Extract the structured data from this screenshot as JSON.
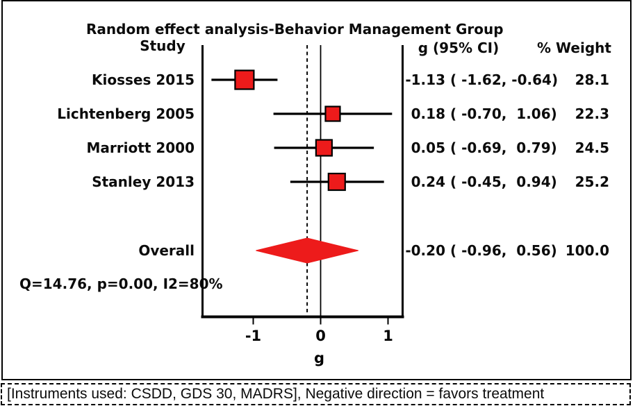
{
  "title": "Random effect analysis-Behavior Management Group",
  "columns": {
    "study": "Study",
    "effect": "g (95% CI)",
    "weight": "% Weight"
  },
  "footer": {
    "note": "[Instruments used: CSDD, GDS 30, MADRS], Negative direction = favors treatment"
  },
  "chart_data": {
    "type": "forest",
    "title": "Random effect analysis-Behavior Management Group",
    "xlabel": "g",
    "x_ticks": [
      -1,
      0,
      1
    ],
    "xlim": [
      -1.75,
      1.22
    ],
    "null_line_x": 0,
    "overall_dashed_line_x": -0.2,
    "marker_color": "#ED1B1B",
    "line_color": "#000000",
    "studies": [
      {
        "label": "Kiosses 2015",
        "g": -1.13,
        "ci_low": -1.62,
        "ci_high": -0.64,
        "weight": 28.1,
        "g_text": "-1.13",
        "ci_text": "( -1.62, -0.64)",
        "weight_text": "28.1"
      },
      {
        "label": "Lichtenberg 2005",
        "g": 0.18,
        "ci_low": -0.7,
        "ci_high": 1.06,
        "weight": 22.3,
        "g_text": "0.18",
        "ci_text": "( -0.70,  1.06)",
        "weight_text": "22.3"
      },
      {
        "label": "Marriott 2000",
        "g": 0.05,
        "ci_low": -0.69,
        "ci_high": 0.79,
        "weight": 24.5,
        "g_text": "0.05",
        "ci_text": "( -0.69,  0.79)",
        "weight_text": "24.5"
      },
      {
        "label": "Stanley 2013",
        "g": 0.24,
        "ci_low": -0.45,
        "ci_high": 0.94,
        "weight": 25.2,
        "g_text": "0.24",
        "ci_text": "( -0.45,  0.94)",
        "weight_text": "25.2"
      }
    ],
    "overall": {
      "label": "Overall",
      "g": -0.2,
      "ci_low": -0.96,
      "ci_high": 0.56,
      "weight": 100.0,
      "g_text": "-0.20",
      "ci_text": "( -0.96,  0.56)",
      "weight_text": "100.0"
    },
    "heterogeneity": "Q=14.76, p=0.00, I2=80%"
  }
}
